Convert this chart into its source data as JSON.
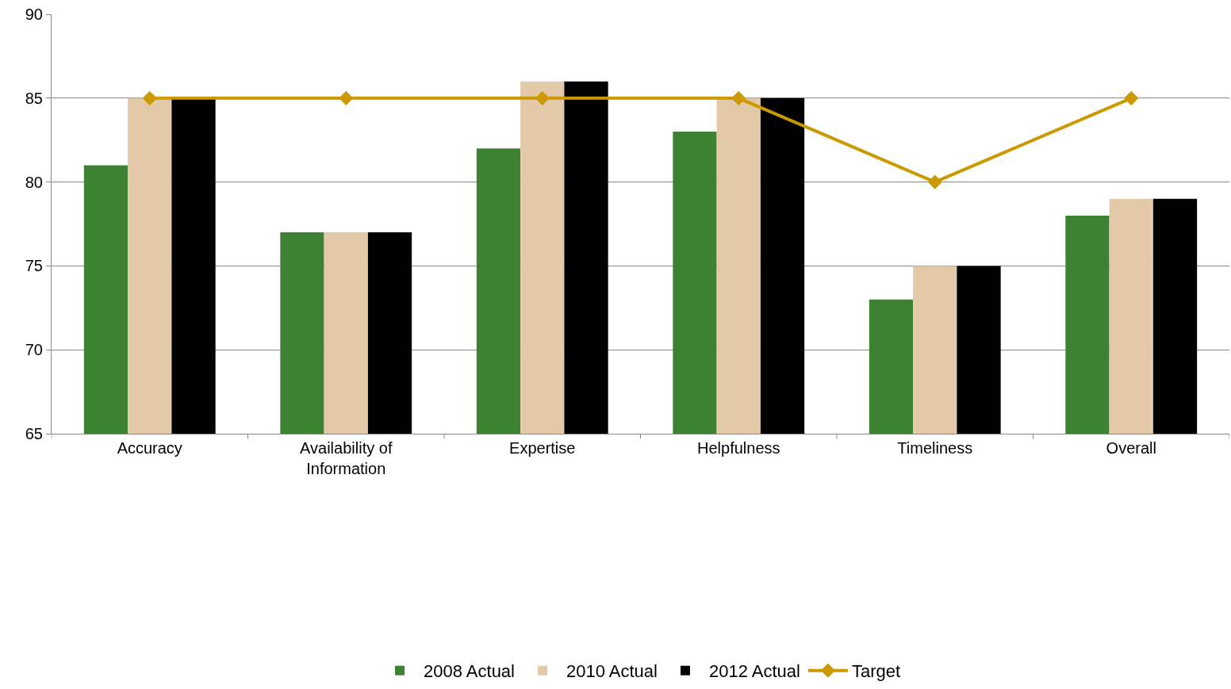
{
  "chart_data": {
    "type": "bar",
    "categories": [
      "Accuracy",
      "Availability of Information",
      "Expertise",
      "Helpfulness",
      "Timeliness",
      "Overall"
    ],
    "series": [
      {
        "name": "2008 Actual",
        "color": "#3d8133",
        "values": [
          81,
          77,
          82,
          83,
          73,
          78
        ]
      },
      {
        "name": "2010 Actual",
        "color": "#e3c9a8",
        "values": [
          85,
          77,
          86,
          85,
          75,
          79
        ]
      },
      {
        "name": "2012 Actual",
        "color": "#000000",
        "values": [
          85,
          77,
          86,
          85,
          75,
          79
        ]
      },
      {
        "name": "Target",
        "type": "line",
        "color": "#cc9900",
        "marker": "diamond",
        "values": [
          85,
          85,
          85,
          85,
          80,
          85
        ]
      }
    ],
    "ylim": [
      65,
      90
    ],
    "yticks": [
      65,
      70,
      75,
      80,
      85,
      90
    ],
    "grid": "y",
    "legend": "bottom"
  }
}
